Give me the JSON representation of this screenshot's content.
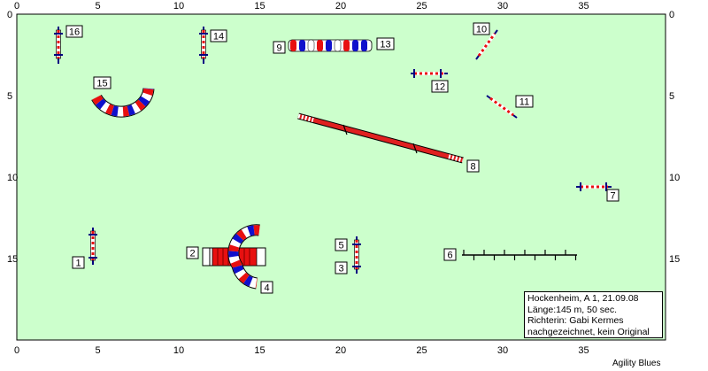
{
  "info": {
    "line1": "Hockenheim, A 1, 21.09.08",
    "line2": "Länge:145 m, 50 sec.",
    "line3": "Richterin: Gabi Kermes",
    "line4": "nachgezeichnet, kein Original"
  },
  "brand": "Agility Blues",
  "colors": {
    "field": "#ccffcc",
    "red": "#e81010",
    "blue": "#1010cc",
    "bar_red": "#e02020",
    "dark_blue": "#000080"
  },
  "axis": {
    "x_ticks": [
      "0",
      "5",
      "10",
      "15",
      "20",
      "25",
      "30",
      "35"
    ],
    "y_ticks": [
      "0",
      "5",
      "10",
      "15"
    ]
  },
  "obstacles": [
    {
      "num": "1",
      "type": "jump"
    },
    {
      "num": "2",
      "type": "tunnel"
    },
    {
      "num": "3",
      "type": "jump"
    },
    {
      "num": "4",
      "type": "curved tunnel"
    },
    {
      "num": "5",
      "type": "jump"
    },
    {
      "num": "6",
      "type": "weave poles"
    },
    {
      "num": "7",
      "type": "jump"
    },
    {
      "num": "8",
      "type": "dog walk"
    },
    {
      "num": "9",
      "type": "tunnel"
    },
    {
      "num": "10",
      "type": "jump"
    },
    {
      "num": "11",
      "type": "jump"
    },
    {
      "num": "12",
      "type": "jump"
    },
    {
      "num": "13",
      "type": "tunnel"
    },
    {
      "num": "14",
      "type": "jump"
    },
    {
      "num": "15",
      "type": "curved tunnel"
    },
    {
      "num": "16",
      "type": "jump"
    }
  ]
}
